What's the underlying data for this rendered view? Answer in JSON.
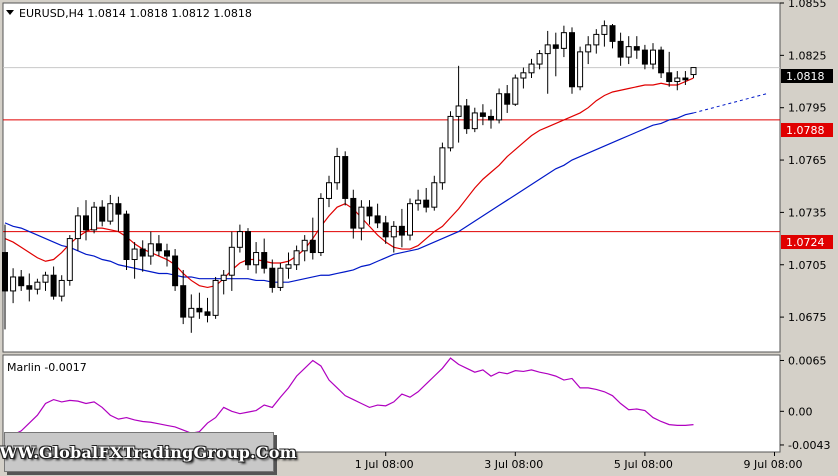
{
  "header": {
    "symbol_line": "EURUSD,H4  1.0814  1.0818  1.0812  1.0818"
  },
  "current_price": {
    "label": "1.0818",
    "value": 1.0818
  },
  "levels": [
    {
      "label": "1.0788",
      "value": 1.0788,
      "color": "#e00000"
    },
    {
      "label": "1.0724",
      "value": 1.0724,
      "color": "#e00000"
    }
  ],
  "indicator": {
    "label": "Marlin -0.0017",
    "color": "#b000c0",
    "tick_labels": [
      "0.0065",
      "0.00",
      "-0.0043"
    ]
  },
  "watermark": "WWW.GlobalFXTradingGroup.Com",
  "chart_data": [
    {
      "type": "candlestick",
      "title": "EURUSD,H4",
      "ylim": [
        1.0655,
        1.0855
      ],
      "y_tick_labels": [
        "1.0855",
        "1.0825",
        "1.0795",
        "1.0765",
        "1.0735",
        "1.0705",
        "1.0675"
      ],
      "x_tick_labels": [
        "1 Jul 08:00",
        "3 Jul 08:00",
        "5 Jul 08:00",
        "9 Jul 08:00"
      ],
      "x_tick_index": [
        47,
        63,
        79,
        95
      ],
      "grid": false,
      "colors": {
        "background": "#ffffff",
        "bull": "#ffffff",
        "bear": "#000000",
        "ma_fast": "#e00000",
        "ma_slow": "#0018c8"
      },
      "candles": [
        [
          1.0712,
          1.0728,
          1.0668,
          1.069
        ],
        [
          1.069,
          1.0703,
          1.0683,
          1.0698
        ],
        [
          1.0698,
          1.0702,
          1.069,
          1.0693
        ],
        [
          1.0693,
          1.07,
          1.0684,
          1.0691
        ],
        [
          1.0691,
          1.0697,
          1.0688,
          1.0695
        ],
        [
          1.0695,
          1.0701,
          1.069,
          1.0699
        ],
        [
          1.0699,
          1.0704,
          1.0685,
          1.0687
        ],
        [
          1.0687,
          1.0699,
          1.0684,
          1.0696
        ],
        [
          1.0696,
          1.0722,
          1.0693,
          1.072
        ],
        [
          1.072,
          1.0738,
          1.0713,
          1.0733
        ],
        [
          1.0733,
          1.0742,
          1.0719,
          1.0725
        ],
        [
          1.0725,
          1.0741,
          1.0723,
          1.0738
        ],
        [
          1.0738,
          1.0742,
          1.0727,
          1.073
        ],
        [
          1.073,
          1.0745,
          1.0728,
          1.074
        ],
        [
          1.074,
          1.0744,
          1.0724,
          1.0734
        ],
        [
          1.0734,
          1.0736,
          1.0702,
          1.0708
        ],
        [
          1.0708,
          1.0718,
          1.0697,
          1.0714
        ],
        [
          1.0714,
          1.0719,
          1.0701,
          1.071
        ],
        [
          1.071,
          1.0724,
          1.0705,
          1.0717
        ],
        [
          1.0717,
          1.0722,
          1.071,
          1.0713
        ],
        [
          1.0713,
          1.0717,
          1.0704,
          1.071
        ],
        [
          1.071,
          1.0714,
          1.069,
          1.0693
        ],
        [
          1.0693,
          1.0702,
          1.0671,
          1.0675
        ],
        [
          1.0675,
          1.0688,
          1.0666,
          1.068
        ],
        [
          1.068,
          1.0689,
          1.0674,
          1.0678
        ],
        [
          1.0678,
          1.0686,
          1.0672,
          1.0676
        ],
        [
          1.0676,
          1.0698,
          1.0674,
          1.0696
        ],
        [
          1.0696,
          1.0702,
          1.0688,
          1.0699
        ],
        [
          1.0699,
          1.0724,
          1.069,
          1.0715
        ],
        [
          1.0715,
          1.0728,
          1.0712,
          1.0724
        ],
        [
          1.0724,
          1.0726,
          1.0702,
          1.0705
        ],
        [
          1.0705,
          1.0718,
          1.07,
          1.0712
        ],
        [
          1.0712,
          1.072,
          1.07,
          1.0703
        ],
        [
          1.0703,
          1.0708,
          1.0689,
          1.0692
        ],
        [
          1.0692,
          1.0706,
          1.069,
          1.0703
        ],
        [
          1.0703,
          1.0712,
          1.0697,
          1.0705
        ],
        [
          1.0705,
          1.0716,
          1.0702,
          1.0713
        ],
        [
          1.0713,
          1.0722,
          1.0707,
          1.0719
        ],
        [
          1.0719,
          1.0732,
          1.0708,
          1.0712
        ],
        [
          1.0712,
          1.0746,
          1.071,
          1.0743
        ],
        [
          1.0743,
          1.0756,
          1.0738,
          1.0752
        ],
        [
          1.0752,
          1.0772,
          1.0748,
          1.0767
        ],
        [
          1.0767,
          1.077,
          1.0739,
          1.0743
        ],
        [
          1.0743,
          1.0748,
          1.072,
          1.0726
        ],
        [
          1.0726,
          1.0742,
          1.0719,
          1.0738
        ],
        [
          1.0738,
          1.0742,
          1.0728,
          1.0733
        ],
        [
          1.0733,
          1.074,
          1.0726,
          1.0729
        ],
        [
          1.0729,
          1.0733,
          1.0717,
          1.0721
        ],
        [
          1.0721,
          1.073,
          1.0712,
          1.0727
        ],
        [
          1.0727,
          1.0737,
          1.0715,
          1.0722
        ],
        [
          1.0722,
          1.0743,
          1.0719,
          1.074
        ],
        [
          1.074,
          1.0748,
          1.0736,
          1.0742
        ],
        [
          1.0742,
          1.0749,
          1.0735,
          1.0738
        ],
        [
          1.0738,
          1.0756,
          1.0736,
          1.0752
        ],
        [
          1.0752,
          1.0775,
          1.0748,
          1.0772
        ],
        [
          1.0772,
          1.0793,
          1.077,
          1.079
        ],
        [
          1.079,
          1.0819,
          1.0775,
          1.0796
        ],
        [
          1.0796,
          1.08,
          1.078,
          1.0783
        ],
        [
          1.0783,
          1.0795,
          1.0781,
          1.0792
        ],
        [
          1.0792,
          1.0797,
          1.0785,
          1.079
        ],
        [
          1.079,
          1.0794,
          1.0783,
          1.0788
        ],
        [
          1.0788,
          1.0806,
          1.0786,
          1.0803
        ],
        [
          1.0803,
          1.0808,
          1.0792,
          1.0797
        ],
        [
          1.0797,
          1.0814,
          1.0796,
          1.0812
        ],
        [
          1.0812,
          1.0818,
          1.0806,
          1.0815
        ],
        [
          1.0815,
          1.0823,
          1.0812,
          1.082
        ],
        [
          1.082,
          1.0828,
          1.0817,
          1.0826
        ],
        [
          1.0826,
          1.0839,
          1.0803,
          1.0831
        ],
        [
          1.0831,
          1.0838,
          1.0813,
          1.0829
        ],
        [
          1.0829,
          1.0842,
          1.0824,
          1.0838
        ],
        [
          1.0838,
          1.0841,
          1.0803,
          1.0807
        ],
        [
          1.0807,
          1.083,
          1.0805,
          1.0827
        ],
        [
          1.0827,
          1.0836,
          1.082,
          1.0831
        ],
        [
          1.0831,
          1.084,
          1.0826,
          1.0837
        ],
        [
          1.0837,
          1.0845,
          1.083,
          1.0842
        ],
        [
          1.0842,
          1.0843,
          1.0829,
          1.0833
        ],
        [
          1.0833,
          1.0838,
          1.0819,
          1.0824
        ],
        [
          1.0824,
          1.0836,
          1.082,
          1.083
        ],
        [
          1.083,
          1.0836,
          1.0823,
          1.0828
        ],
        [
          1.0828,
          1.0831,
          1.0817,
          1.082
        ],
        [
          1.082,
          1.0832,
          1.0817,
          1.0828
        ],
        [
          1.0828,
          1.083,
          1.0812,
          1.0815
        ],
        [
          1.0815,
          1.0827,
          1.0807,
          1.081
        ],
        [
          1.081,
          1.0816,
          1.0805,
          1.0812
        ],
        [
          1.0812,
          1.0816,
          1.0808,
          1.0811
        ],
        [
          1.0814,
          1.0818,
          1.0812,
          1.0818
        ]
      ],
      "ma_fast": [
        1.072,
        1.0718,
        1.0715,
        1.0712,
        1.0709,
        1.0707,
        1.0708,
        1.0712,
        1.0717,
        1.0721,
        1.0724,
        1.0726,
        1.0726,
        1.0725,
        1.0724,
        1.0721,
        1.0717,
        1.0714,
        1.0712,
        1.071,
        1.0708,
        1.0705,
        1.07,
        1.0696,
        1.0693,
        1.0692,
        1.0693,
        1.0697,
        1.0702,
        1.0706,
        1.0708,
        1.0708,
        1.0707,
        1.0706,
        1.0706,
        1.0707,
        1.071,
        1.0714,
        1.072,
        1.0727,
        1.0733,
        1.0738,
        1.074,
        1.0737,
        1.0732,
        1.0727,
        1.0722,
        1.0718,
        1.0715,
        1.0714,
        1.0714,
        1.0716,
        1.072,
        1.0724,
        1.0727,
        1.0732,
        1.0737,
        1.0743,
        1.0749,
        1.0754,
        1.0758,
        1.0762,
        1.0767,
        1.0771,
        1.0775,
        1.0779,
        1.0782,
        1.0784,
        1.0786,
        1.0788,
        1.079,
        1.0792,
        1.0795,
        1.0799,
        1.0802,
        1.0804,
        1.0805,
        1.0806,
        1.0807,
        1.0808,
        1.0808,
        1.0809,
        1.0808,
        1.0808,
        1.081,
        1.0812
      ],
      "ma_slow": [
        1.0729,
        1.0727,
        1.0726,
        1.0724,
        1.0722,
        1.072,
        1.0718,
        1.0716,
        1.0715,
        1.0713,
        1.0711,
        1.071,
        1.0708,
        1.0707,
        1.0705,
        1.0704,
        1.0703,
        1.0702,
        1.0701,
        1.07,
        1.07,
        1.0699,
        1.0698,
        1.0698,
        1.0697,
        1.0697,
        1.0697,
        1.0697,
        1.0697,
        1.0697,
        1.0697,
        1.0696,
        1.0696,
        1.0695,
        1.0695,
        1.0695,
        1.0696,
        1.0697,
        1.0698,
        1.0699,
        1.0699,
        1.07,
        1.0701,
        1.0702,
        1.0704,
        1.0705,
        1.0707,
        1.0709,
        1.0711,
        1.0712,
        1.0713,
        1.0714,
        1.0716,
        1.0718,
        1.072,
        1.0722,
        1.0724,
        1.0727,
        1.073,
        1.0733,
        1.0736,
        1.0739,
        1.0742,
        1.0745,
        1.0748,
        1.0751,
        1.0754,
        1.0757,
        1.076,
        1.0762,
        1.0765,
        1.0767,
        1.0769,
        1.0771,
        1.0773,
        1.0775,
        1.0777,
        1.0779,
        1.0781,
        1.0783,
        1.0785,
        1.0786,
        1.0788,
        1.0789,
        1.0791,
        1.0792
      ],
      "ma_slow_projection": [
        1.0792,
        1.0803
      ]
    },
    {
      "type": "line",
      "title": "Marlin -0.0017",
      "ylim": [
        -0.0052,
        0.0072
      ],
      "y_tick_values": [
        0.0065,
        0.0,
        -0.0043
      ],
      "series": [
        {
          "name": "Marlin",
          "values": [
            -0.004,
            -0.003,
            -0.0025,
            -0.0015,
            -0.0005,
            0.001,
            0.0015,
            0.0012,
            0.0014,
            0.0013,
            0.001,
            0.0012,
            0.0005,
            -0.0005,
            -0.001,
            -0.0008,
            -0.0011,
            -0.0013,
            -0.0014,
            -0.0016,
            -0.0018,
            -0.002,
            -0.0024,
            -0.0028,
            -0.0026,
            -0.0015,
            -0.0008,
            0.0005,
            0.0,
            -0.0003,
            -0.0001,
            0.0001,
            0.0008,
            0.0005,
            0.0018,
            0.003,
            0.0045,
            0.0055,
            0.0065,
            0.0058,
            0.004,
            0.003,
            0.002,
            0.0015,
            0.001,
            0.0005,
            0.0008,
            0.0007,
            0.0012,
            0.0022,
            0.0018,
            0.0025,
            0.0035,
            0.0045,
            0.0055,
            0.0068,
            0.006,
            0.0055,
            0.005,
            0.0053,
            0.0045,
            0.005,
            0.0048,
            0.0052,
            0.0051,
            0.0053,
            0.005,
            0.0048,
            0.0045,
            0.004,
            0.0042,
            0.003,
            0.003,
            0.0028,
            0.0025,
            0.002,
            0.001,
            0.0002,
            0.0003,
            0.0001,
            -0.0008,
            -0.0013,
            -0.0017,
            -0.0018,
            -0.0018,
            -0.0017
          ]
        }
      ]
    }
  ]
}
